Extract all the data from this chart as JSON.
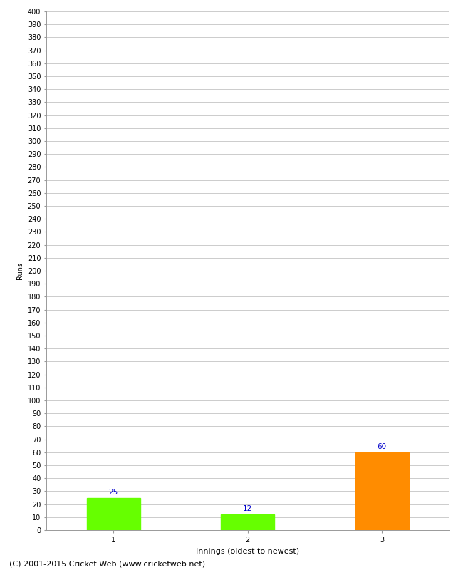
{
  "categories": [
    "1",
    "2",
    "3"
  ],
  "values": [
    25,
    12,
    60
  ],
  "bar_colors": [
    "#66ff00",
    "#66ff00",
    "#ff8c00"
  ],
  "xlabel": "Innings (oldest to newest)",
  "ylabel": "Runs",
  "ylim": [
    0,
    400
  ],
  "ytick_step": 10,
  "annotation_color": "#0000cc",
  "annotation_fontsize": 7.5,
  "grid_color": "#cccccc",
  "background_color": "#ffffff",
  "footer": "(C) 2001-2015 Cricket Web (www.cricketweb.net)",
  "footer_fontsize": 8,
  "tick_fontsize": 7,
  "xlabel_fontsize": 8,
  "ylabel_fontsize": 7
}
